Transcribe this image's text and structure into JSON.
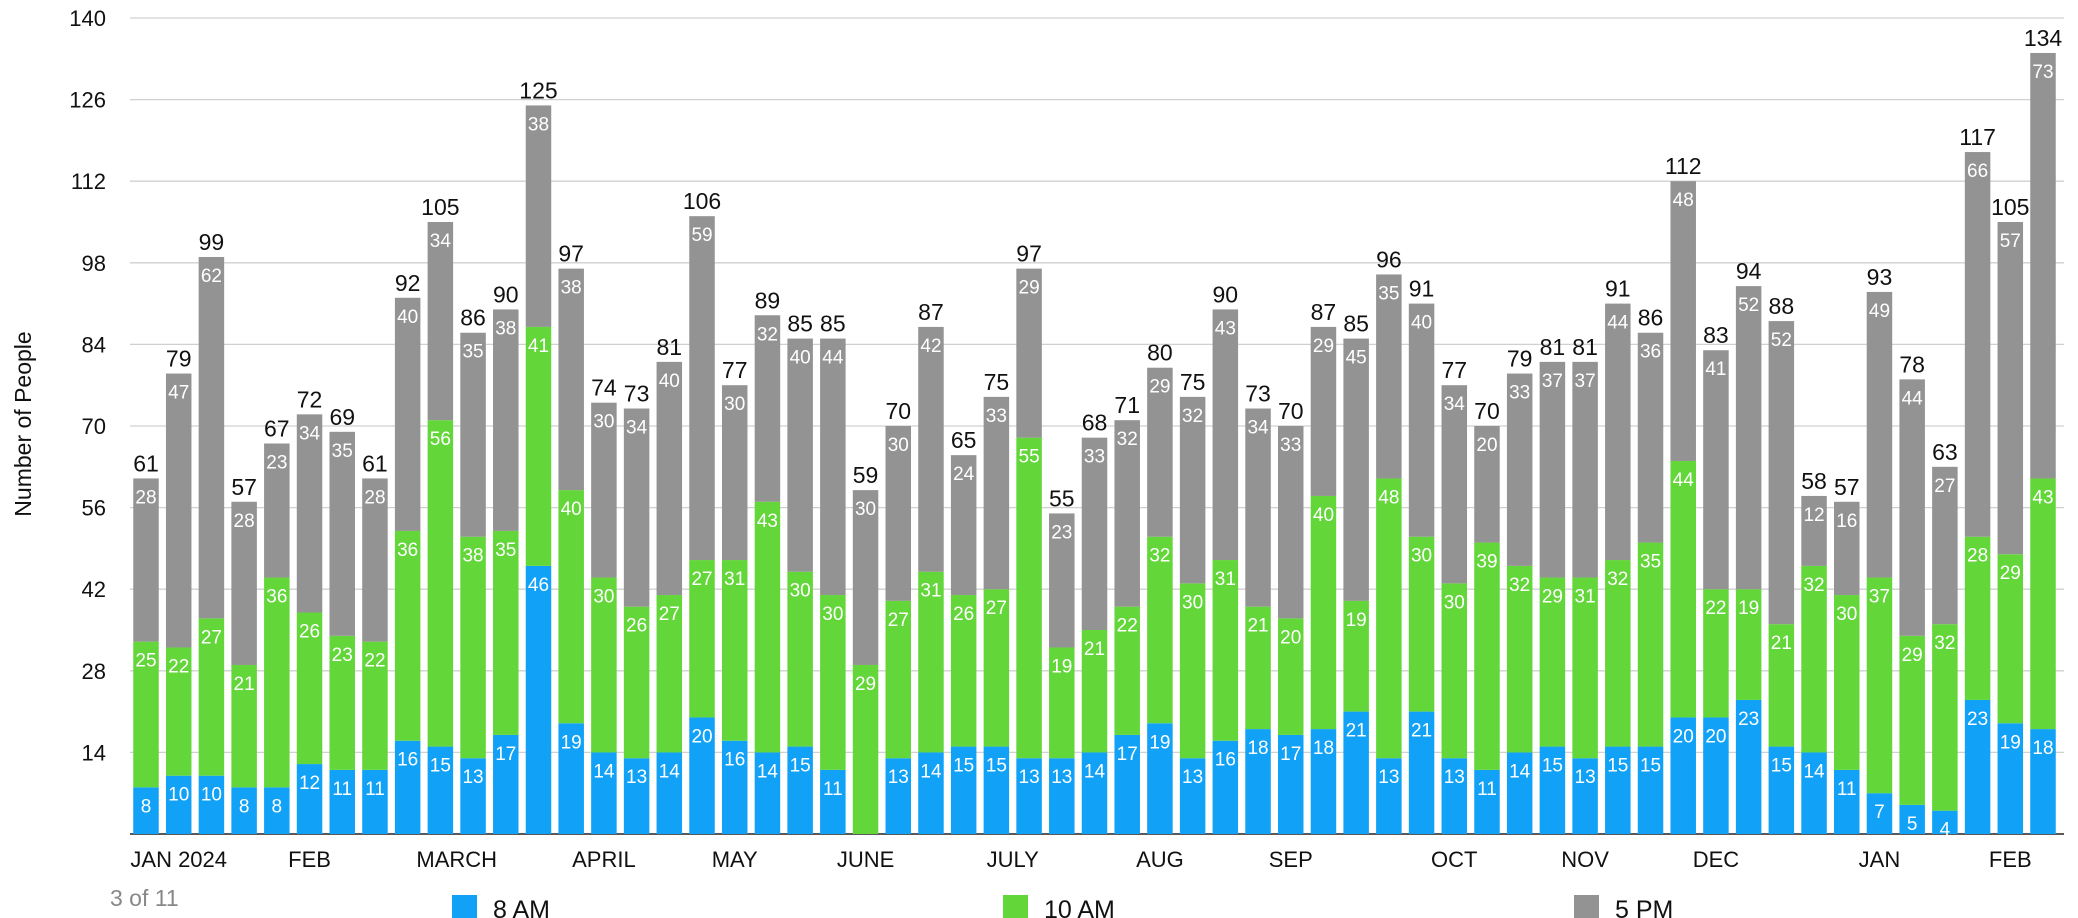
{
  "page_indicator": "3 of 11",
  "chart_data": {
    "type": "bar",
    "stacked": true,
    "ylabel": "Number of People",
    "ylim": [
      0,
      140
    ],
    "yticks": [
      14,
      28,
      42,
      56,
      70,
      84,
      98,
      112,
      126,
      140
    ],
    "grid": true,
    "legend_position": "bottom",
    "series": [
      {
        "name": "8 AM",
        "color": "#11a2f8",
        "values": [
          8,
          10,
          10,
          8,
          8,
          12,
          11,
          11,
          16,
          15,
          13,
          17,
          46,
          19,
          14,
          13,
          14,
          20,
          16,
          14,
          15,
          11,
          0,
          13,
          14,
          15,
          15,
          13,
          13,
          14,
          17,
          19,
          13,
          16,
          18,
          17,
          18,
          21,
          13,
          21,
          13,
          11,
          14,
          15,
          13,
          15,
          15,
          20,
          20,
          23,
          15,
          14,
          11,
          7,
          5,
          4,
          23,
          19,
          18
        ]
      },
      {
        "name": "10 AM",
        "color": "#63d63a",
        "values": [
          25,
          22,
          27,
          21,
          36,
          26,
          23,
          22,
          36,
          56,
          38,
          35,
          41,
          40,
          30,
          26,
          27,
          27,
          31,
          43,
          30,
          30,
          29,
          27,
          31,
          26,
          27,
          55,
          19,
          21,
          22,
          32,
          30,
          31,
          21,
          20,
          40,
          19,
          48,
          30,
          30,
          39,
          32,
          29,
          31,
          32,
          35,
          44,
          22,
          19,
          21,
          32,
          30,
          37,
          29,
          32,
          28,
          29,
          43
        ]
      },
      {
        "name": "5 PM",
        "color": "#939393",
        "values": [
          28,
          47,
          62,
          28,
          23,
          34,
          35,
          28,
          40,
          34,
          35,
          38,
          38,
          38,
          30,
          34,
          40,
          59,
          30,
          32,
          40,
          44,
          30,
          30,
          42,
          24,
          33,
          29,
          23,
          33,
          32,
          29,
          32,
          43,
          34,
          33,
          29,
          45,
          35,
          40,
          34,
          20,
          33,
          37,
          37,
          44,
          36,
          48,
          41,
          52,
          52,
          12,
          16,
          49,
          44,
          27,
          66,
          57,
          73
        ]
      }
    ],
    "totals": [
      61,
      79,
      99,
      57,
      67,
      72,
      69,
      61,
      92,
      105,
      86,
      90,
      125,
      97,
      74,
      73,
      81,
      106,
      77,
      89,
      85,
      85,
      59,
      70,
      87,
      65,
      75,
      97,
      55,
      68,
      71,
      80,
      75,
      90,
      73,
      70,
      87,
      85,
      96,
      91,
      77,
      70,
      79,
      81,
      81,
      91,
      86,
      112,
      83,
      94,
      88,
      58,
      57,
      93,
      78,
      63,
      117,
      105,
      134
    ],
    "month_labels": [
      {
        "label": "JAN 2024",
        "bar": 1
      },
      {
        "label": "FEB",
        "bar": 5
      },
      {
        "label": "MARCH",
        "bar": 9.5
      },
      {
        "label": "APRIL",
        "bar": 14
      },
      {
        "label": "MAY",
        "bar": 18
      },
      {
        "label": "JUNE",
        "bar": 22
      },
      {
        "label": "JULY",
        "bar": 26.5
      },
      {
        "label": "AUG",
        "bar": 31
      },
      {
        "label": "SEP",
        "bar": 35
      },
      {
        "label": "OCT",
        "bar": 40
      },
      {
        "label": "NOV",
        "bar": 44
      },
      {
        "label": "DEC",
        "bar": 48
      },
      {
        "label": "JAN",
        "bar": 53
      },
      {
        "label": "FEB",
        "bar": 57
      }
    ]
  }
}
